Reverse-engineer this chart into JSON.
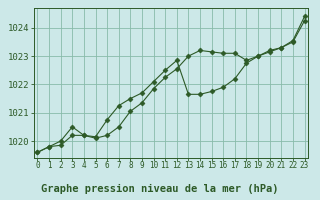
{
  "xlabel": "Graphe pression niveau de la mer (hPa)",
  "background_color": "#cce8e8",
  "plot_bg_color": "#cce8e8",
  "grid_color": "#88bbaa",
  "line_color": "#2d5a27",
  "hours": [
    0,
    1,
    2,
    3,
    4,
    5,
    6,
    7,
    8,
    9,
    10,
    11,
    12,
    13,
    14,
    15,
    16,
    17,
    18,
    19,
    20,
    21,
    22,
    23
  ],
  "series1": [
    1019.6,
    1019.8,
    1019.85,
    1020.2,
    1020.2,
    1020.1,
    1020.2,
    1020.5,
    1021.05,
    1021.35,
    1021.85,
    1022.25,
    1022.55,
    1023.0,
    1023.2,
    1023.15,
    1023.1,
    1023.1,
    1022.85,
    1023.0,
    1023.2,
    1023.3,
    1023.5,
    1024.25
  ],
  "series2": [
    1019.6,
    1019.8,
    1020.0,
    1020.5,
    1020.2,
    1020.15,
    1020.75,
    1021.25,
    1021.5,
    1021.7,
    1022.1,
    1022.5,
    1022.85,
    1021.65,
    1021.65,
    1021.75,
    1021.9,
    1022.2,
    1022.75,
    1023.0,
    1023.15,
    1023.3,
    1023.55,
    1024.4
  ],
  "ylim": [
    1019.4,
    1024.7
  ],
  "yticks": [
    1020,
    1021,
    1022,
    1023,
    1024
  ],
  "xlim": [
    -0.3,
    23.3
  ]
}
